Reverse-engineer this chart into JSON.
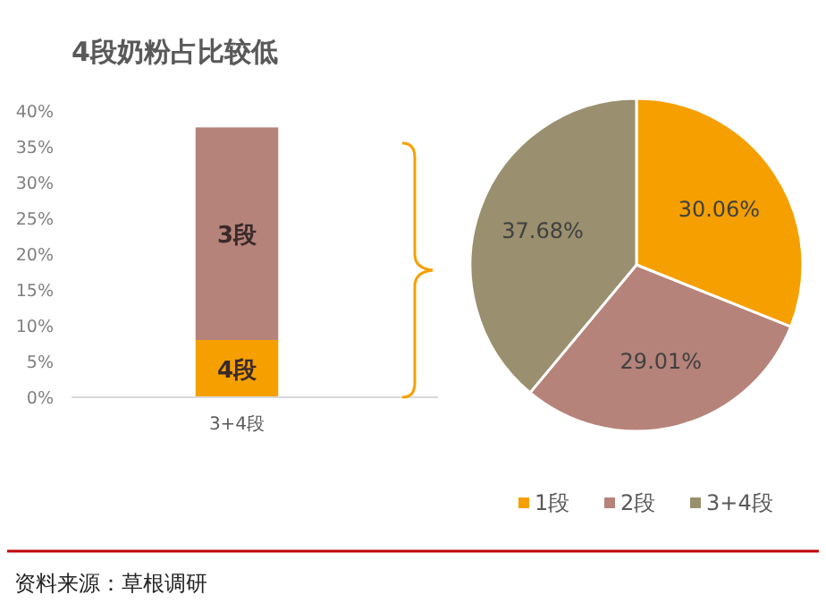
{
  "chart_data": [
    {
      "type": "bar",
      "title": "4段奶粉占比较低",
      "categories": [
        "3+4段"
      ],
      "stacked": true,
      "series": [
        {
          "name": "4段",
          "color": "#f5a000",
          "values": [
            8
          ]
        },
        {
          "name": "3段",
          "color": "#b5837a",
          "values": [
            29.7
          ]
        }
      ],
      "ylim": [
        0,
        40
      ],
      "yticks": [
        {
          "value": 0,
          "label": "0%"
        },
        {
          "value": 5,
          "label": "5%"
        },
        {
          "value": 10,
          "label": "10%"
        },
        {
          "value": 15,
          "label": "15%"
        },
        {
          "value": 20,
          "label": "20%"
        },
        {
          "value": 25,
          "label": "25%"
        },
        {
          "value": 30,
          "label": "30%"
        },
        {
          "value": 35,
          "label": "35%"
        },
        {
          "value": 40,
          "label": "40%"
        }
      ],
      "annotations": [
        "资料来源：草根调研"
      ]
    },
    {
      "type": "pie",
      "categories": [
        "1段",
        "2段",
        "3+4段"
      ],
      "values": [
        30.06,
        29.01,
        37.68
      ],
      "colors": [
        "#f5a000",
        "#b5837a",
        "#9a8f6e"
      ],
      "value_labels": [
        "30.06%",
        "29.01%",
        "37.68%"
      ],
      "legend": "bottom"
    }
  ]
}
